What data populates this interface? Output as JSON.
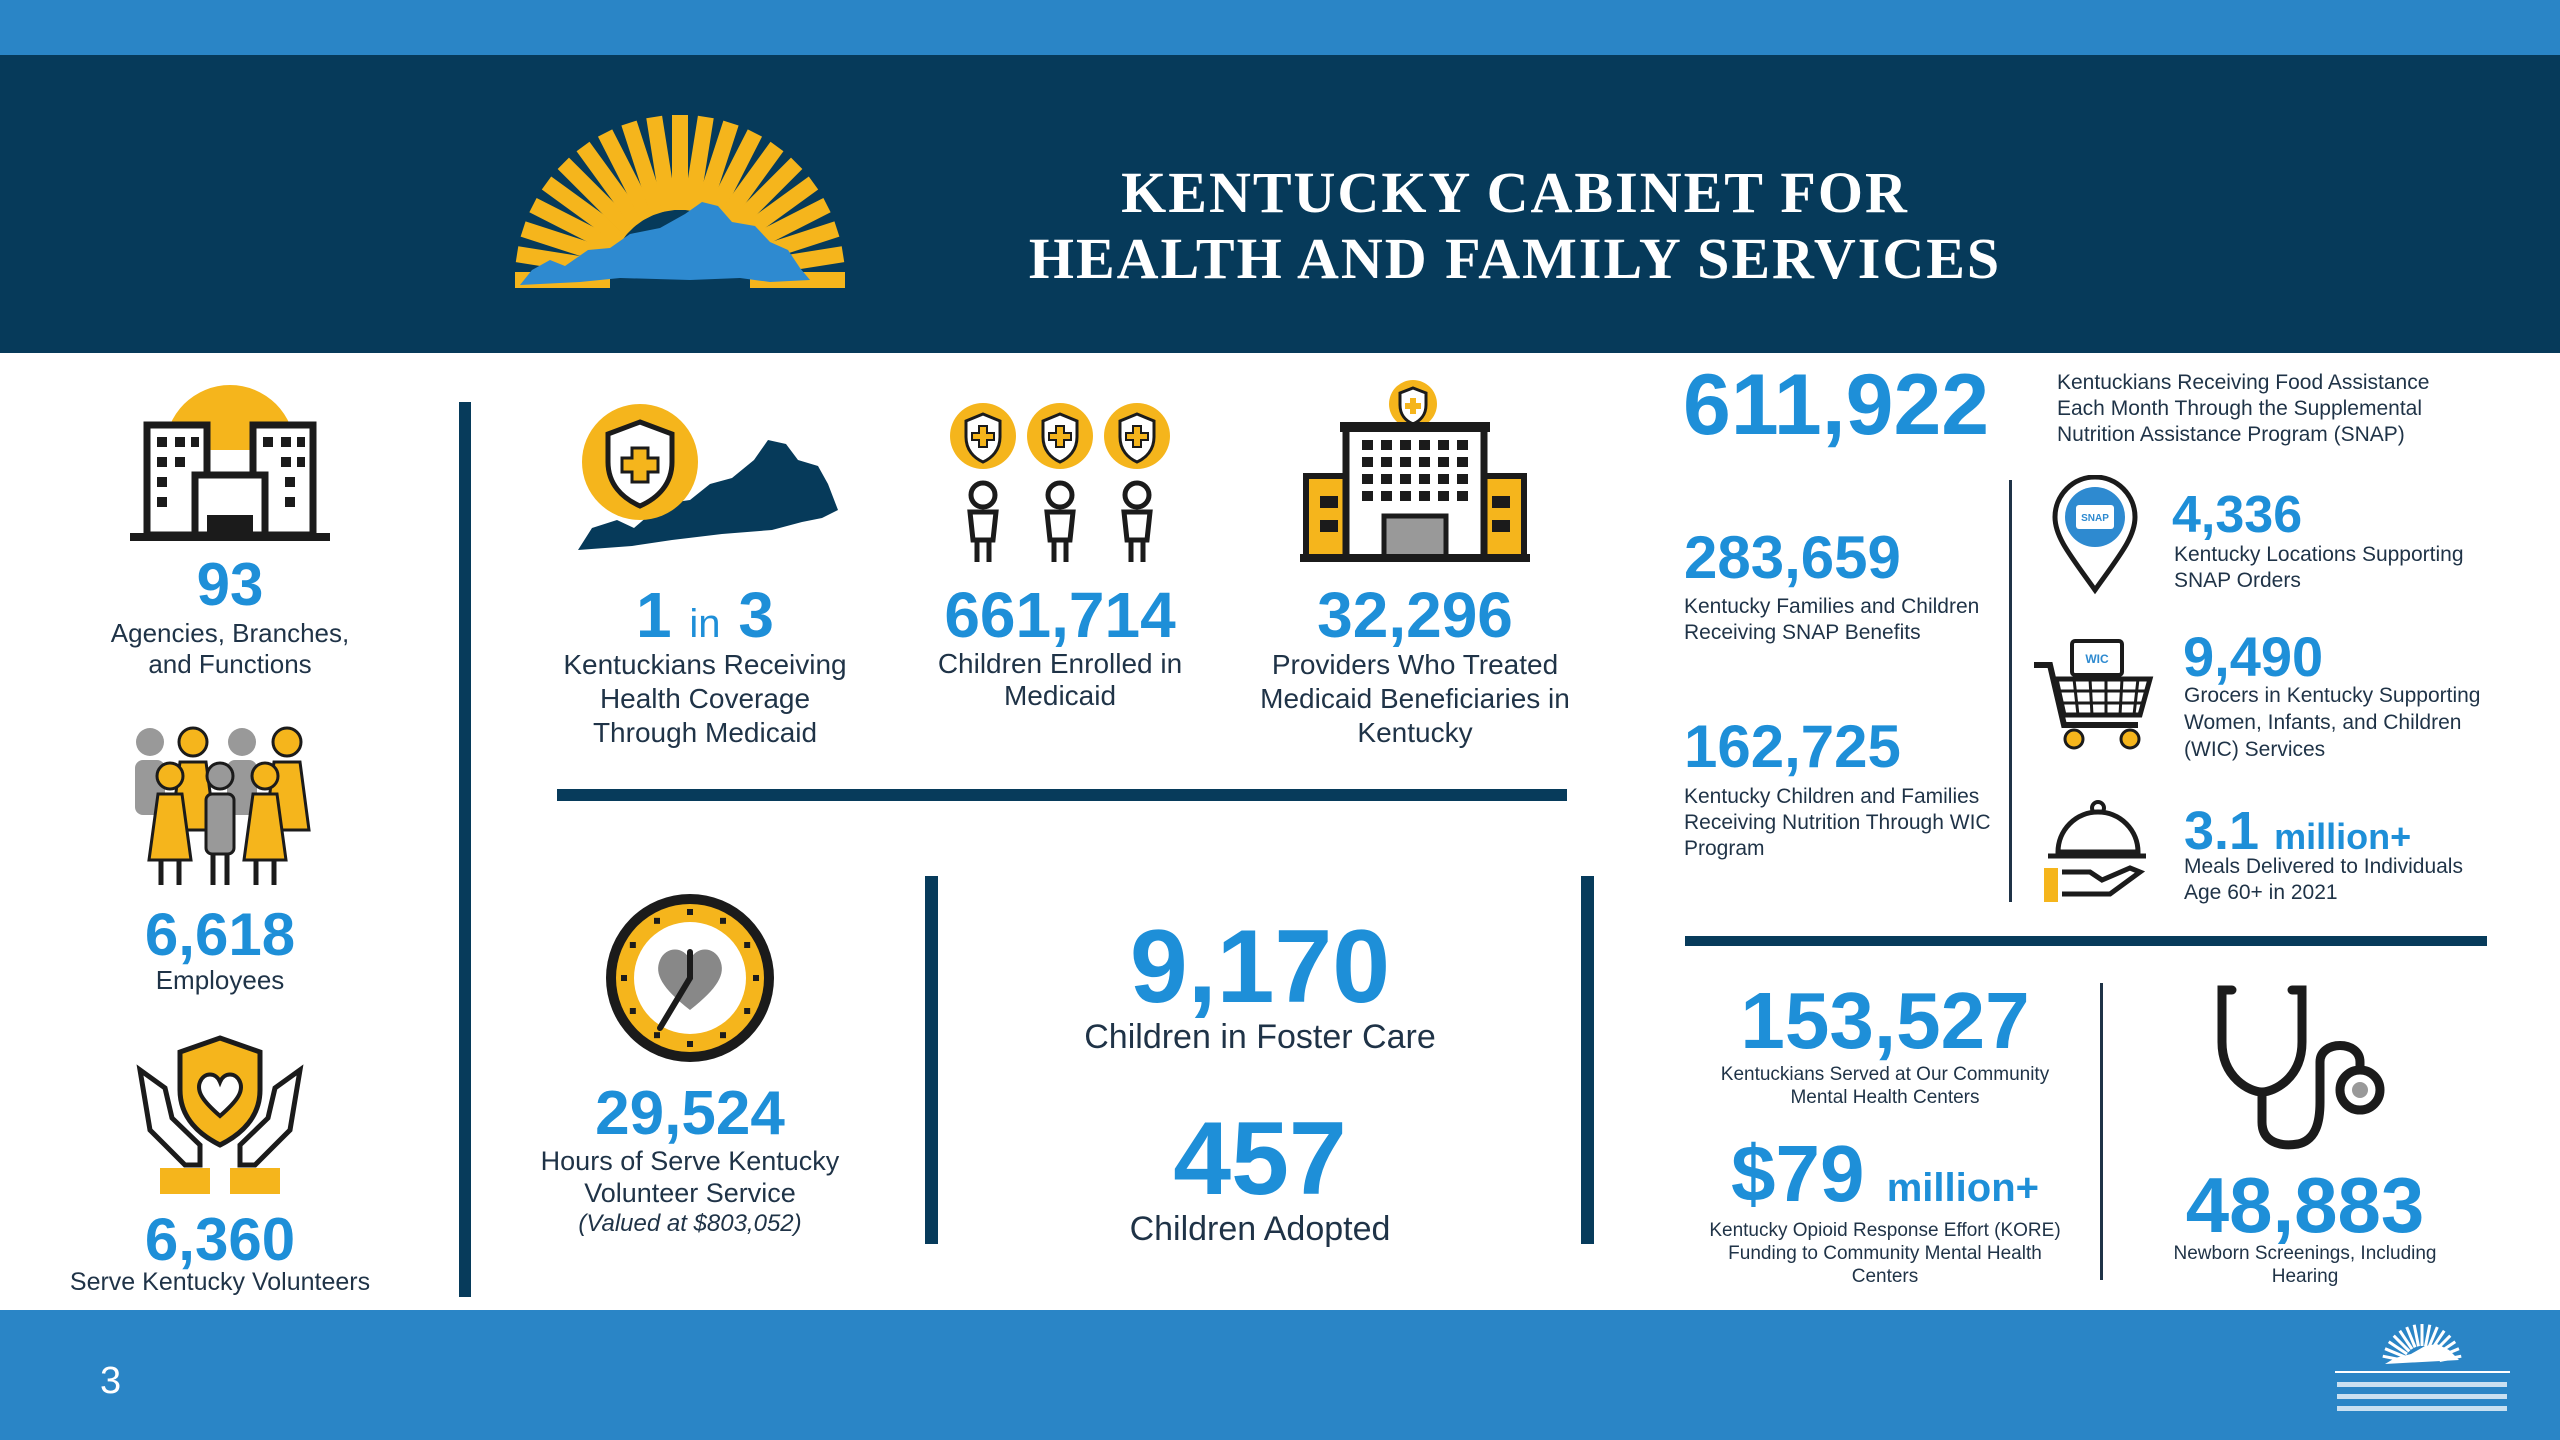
{
  "header": {
    "title_line1": "KENTUCKY CABINET FOR",
    "title_line2": "HEALTH AND FAMILY SERVICES"
  },
  "slide_number": "3",
  "colors": {
    "navy": "#063a5a",
    "blue_band": "#2a85c6",
    "accent_blue": "#1e8fd8",
    "gold": "#f5b51c"
  },
  "left_column": {
    "agencies": {
      "value": "93",
      "label": "Agencies, Branches, and Functions",
      "icon": "office-buildings-icon"
    },
    "employees": {
      "value": "6,618",
      "label": "Employees",
      "icon": "people-group-icon"
    },
    "volunteers": {
      "value": "6,360",
      "label": "Serve Kentucky Volunteers",
      "icon": "hands-heart-icon"
    }
  },
  "medicaid": {
    "coverage": {
      "value_a": "1",
      "value_in": "in",
      "value_b": "3",
      "label": "Kentuckians Receiving Health Coverage Through Medicaid",
      "icon": "kentucky-shield-icon"
    },
    "children": {
      "value": "661,714",
      "label": "Children Enrolled in Medicaid",
      "icon": "children-shield-icon"
    },
    "providers": {
      "value": "32,296",
      "label": "Providers Who Treated Medicaid Beneficiaries in Kentucky",
      "icon": "hospital-icon"
    }
  },
  "volunteer_hours": {
    "value": "29,524",
    "label": "Hours of Serve Kentucky Volunteer Service",
    "note": "(Valued at $803,052)",
    "icon": "clock-heart-icon"
  },
  "foster": {
    "care_value": "9,170",
    "care_label": "Children in Foster Care",
    "adopted_value": "457",
    "adopted_label": "Children Adopted"
  },
  "snap": {
    "main_value": "611,922",
    "main_label": "Kentuckians Receiving Food Assistance Each Month Through the Supplemental Nutrition Assistance Program (SNAP)",
    "families_value": "283,659",
    "families_label": "Kentucky Families and Children Receiving SNAP Benefits",
    "wic_value": "162,725",
    "wic_label": "Kentucky Children and Families Receiving Nutrition Through WIC Program",
    "locations_value": "4,336",
    "locations_label": "Kentucky Locations Supporting SNAP Orders",
    "locations_icon_text": "SNAP",
    "grocers_value": "9,490",
    "grocers_label": "Grocers in Kentucky Supporting Women, Infants, and Children (WIC) Services",
    "grocers_icon_text": "WIC",
    "meals_value": "3.1",
    "meals_unit": "million+",
    "meals_label": "Meals Delivered to Individuals Age 60+ in 2021"
  },
  "mental_health": {
    "served_value": "153,527",
    "served_label": "Kentuckians Served at Our Community Mental Health Centers",
    "kore_value": "$79",
    "kore_unit": "million+",
    "kore_label": "Kentucky Opioid Response Effort (KORE) Funding to Community Mental Health Centers",
    "screenings_value": "48,883",
    "screenings_label": "Newborn Screenings, Including Hearing"
  }
}
